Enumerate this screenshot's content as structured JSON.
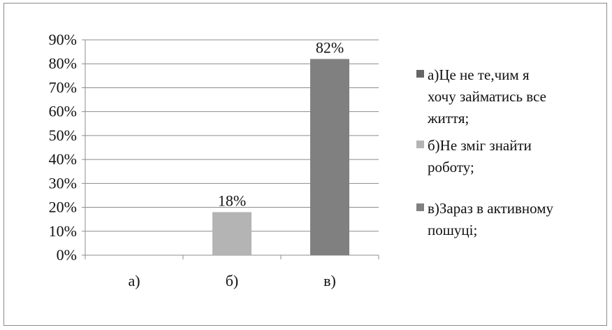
{
  "chart_data": {
    "type": "bar",
    "categories": [
      "а)",
      "б)",
      "в)"
    ],
    "values": [
      0,
      18,
      82
    ],
    "data_labels": [
      null,
      "18%",
      "82%"
    ],
    "colors": [
      "#666666",
      "#b4b4b4",
      "#808080"
    ],
    "ylim": [
      0,
      90
    ],
    "yticks": [
      "0%",
      "10%",
      "20%",
      "30%",
      "40%",
      "50%",
      "60%",
      "70%",
      "80%",
      "90%"
    ],
    "grid": true,
    "legend_position": "right",
    "legend": [
      {
        "label_lines": [
          "а)Це не те,чим я",
          "хочу займатись все",
          "життя;"
        ],
        "color": "#666666"
      },
      {
        "label_lines": [
          "б)Не зміг знайти",
          "роботу;"
        ],
        "color": "#b4b4b4"
      },
      {
        "label_lines": [
          "в)Зараз в активному",
          "пошуці;"
        ],
        "color": "#808080"
      }
    ]
  }
}
